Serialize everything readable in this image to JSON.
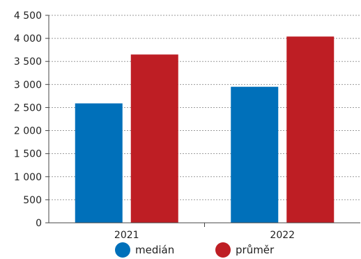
{
  "chart_data": {
    "type": "bar",
    "categories": [
      "2021",
      "2022"
    ],
    "series": [
      {
        "name": "medián",
        "color": "#0070BA",
        "values": [
          2590,
          2950
        ]
      },
      {
        "name": "průměr",
        "color": "#BE1E24",
        "values": [
          3650,
          4040
        ]
      }
    ],
    "ylim": [
      0,
      4500
    ],
    "ytick_values": [
      0,
      500,
      1000,
      1500,
      2000,
      2500,
      3000,
      3500,
      4000,
      4500
    ],
    "ytick_labels": [
      "0",
      "500",
      "1 000",
      "1 500",
      "2 000",
      "2 500",
      "3 000",
      "3 500",
      "4 000",
      "4 500"
    ],
    "grid": true,
    "legend_position": "bottom"
  }
}
